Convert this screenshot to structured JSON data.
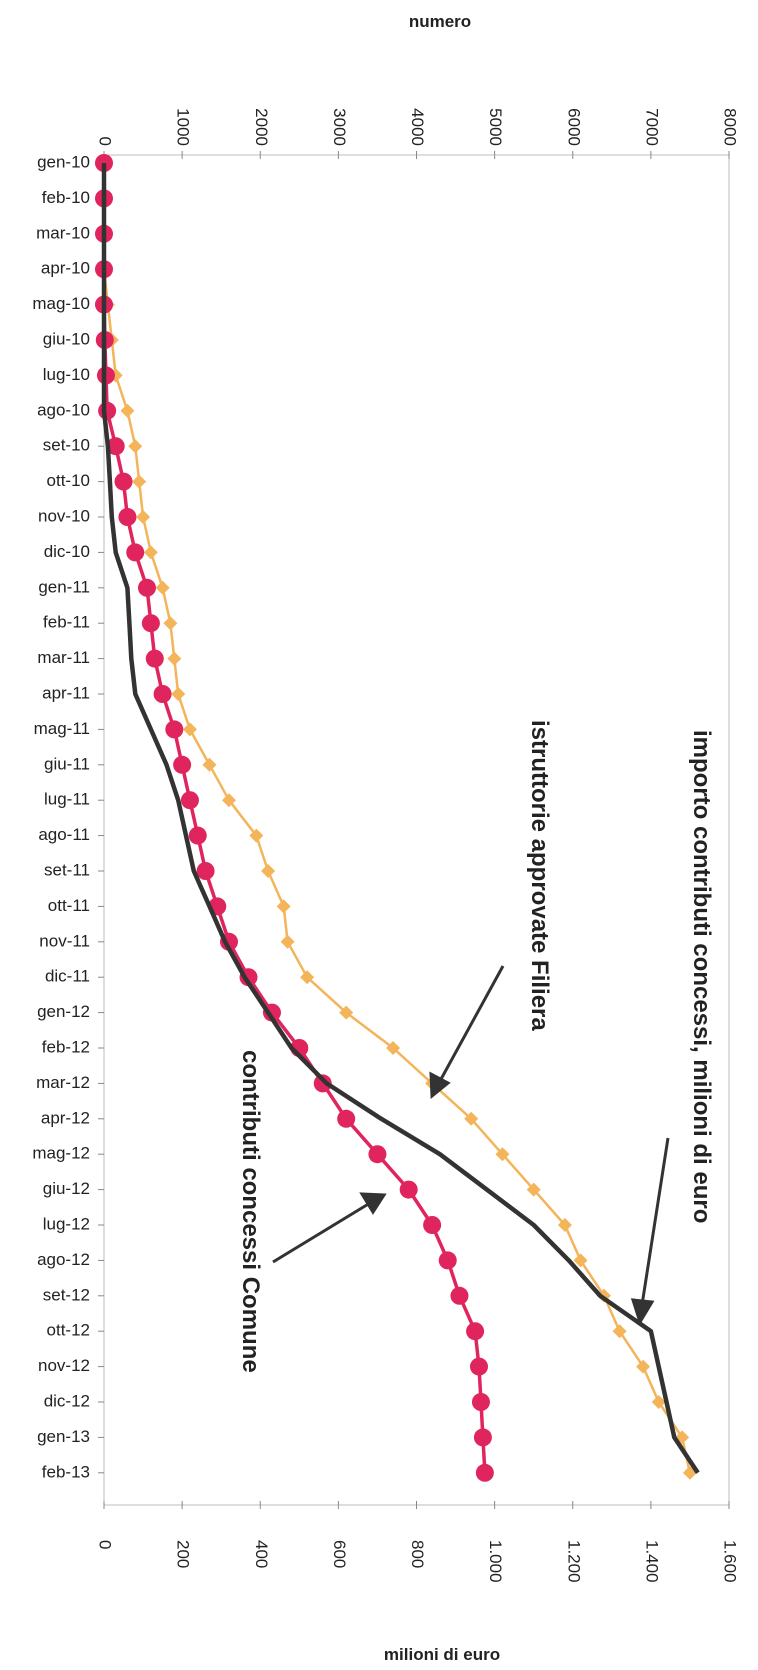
{
  "chart_data": {
    "type": "line",
    "orientation": "rotated-90-clockwise",
    "categories": [
      "gen-10",
      "feb-10",
      "mar-10",
      "apr-10",
      "mag-10",
      "giu-10",
      "lug-10",
      "ago-10",
      "set-10",
      "ott-10",
      "nov-10",
      "dic-10",
      "gen-11",
      "feb-11",
      "mar-11",
      "apr-11",
      "mag-11",
      "giu-11",
      "lug-11",
      "ago-11",
      "set-11",
      "ott-11",
      "nov-11",
      "dic-11",
      "gen-12",
      "feb-12",
      "mar-12",
      "apr-12",
      "mag-12",
      "giu-12",
      "lug-12",
      "ago-12",
      "set-12",
      "ott-12",
      "nov-12",
      "dic-12",
      "gen-13",
      "feb-13"
    ],
    "axes": {
      "top": {
        "title": "numero",
        "min": 0,
        "max": 8000,
        "ticks": [
          "0",
          "1000",
          "2000",
          "3000",
          "4000",
          "5000",
          "6000",
          "7000",
          "8000"
        ]
      },
      "bottom": {
        "title": "milioni di euro",
        "min": 0,
        "max": 1600,
        "ticks": [
          "0",
          "200",
          "400",
          "600",
          "800",
          "1.000",
          "1.200",
          "1.400",
          "1.600"
        ]
      }
    },
    "series": [
      {
        "key": "filiera",
        "axis": "top",
        "color": "#f4b45a",
        "marker": "diamond",
        "values": [
          0,
          0,
          0,
          0,
          50,
          100,
          150,
          300,
          400,
          450,
          500,
          600,
          750,
          850,
          900,
          950,
          1100,
          1350,
          1600,
          1950,
          2100,
          2300,
          2350,
          2600,
          3100,
          3700,
          4200,
          4700,
          5100,
          5500,
          5900,
          6100,
          6400,
          6600,
          6900,
          7100,
          7400,
          7500
        ]
      },
      {
        "key": "comune",
        "axis": "bottom",
        "color": "#e0245e",
        "marker": "circle",
        "values": [
          0,
          0,
          0,
          0,
          0,
          2,
          5,
          8,
          30,
          50,
          60,
          80,
          110,
          120,
          130,
          150,
          180,
          200,
          220,
          240,
          260,
          290,
          320,
          370,
          430,
          500,
          560,
          620,
          700,
          780,
          840,
          880,
          910,
          950,
          960,
          965,
          970,
          975
        ]
      },
      {
        "key": "importo",
        "axis": "bottom",
        "color": "#333333",
        "marker": "none",
        "values": [
          0,
          0,
          0,
          0,
          0,
          0,
          0,
          0,
          10,
          15,
          20,
          30,
          60,
          65,
          70,
          80,
          120,
          160,
          190,
          210,
          230,
          270,
          310,
          360,
          420,
          480,
          570,
          710,
          860,
          980,
          1100,
          1190,
          1270,
          1400,
          1420,
          1440,
          1460,
          1520
        ]
      }
    ],
    "annotations": [
      {
        "target": "importo",
        "text": "importo contributi concessi, milioni di euro"
      },
      {
        "target": "filiera",
        "text": "istruttorie approvate Filiera"
      },
      {
        "target": "comune",
        "text": "contributi  concessi Comune"
      }
    ],
    "grid": false,
    "legend": "none"
  }
}
